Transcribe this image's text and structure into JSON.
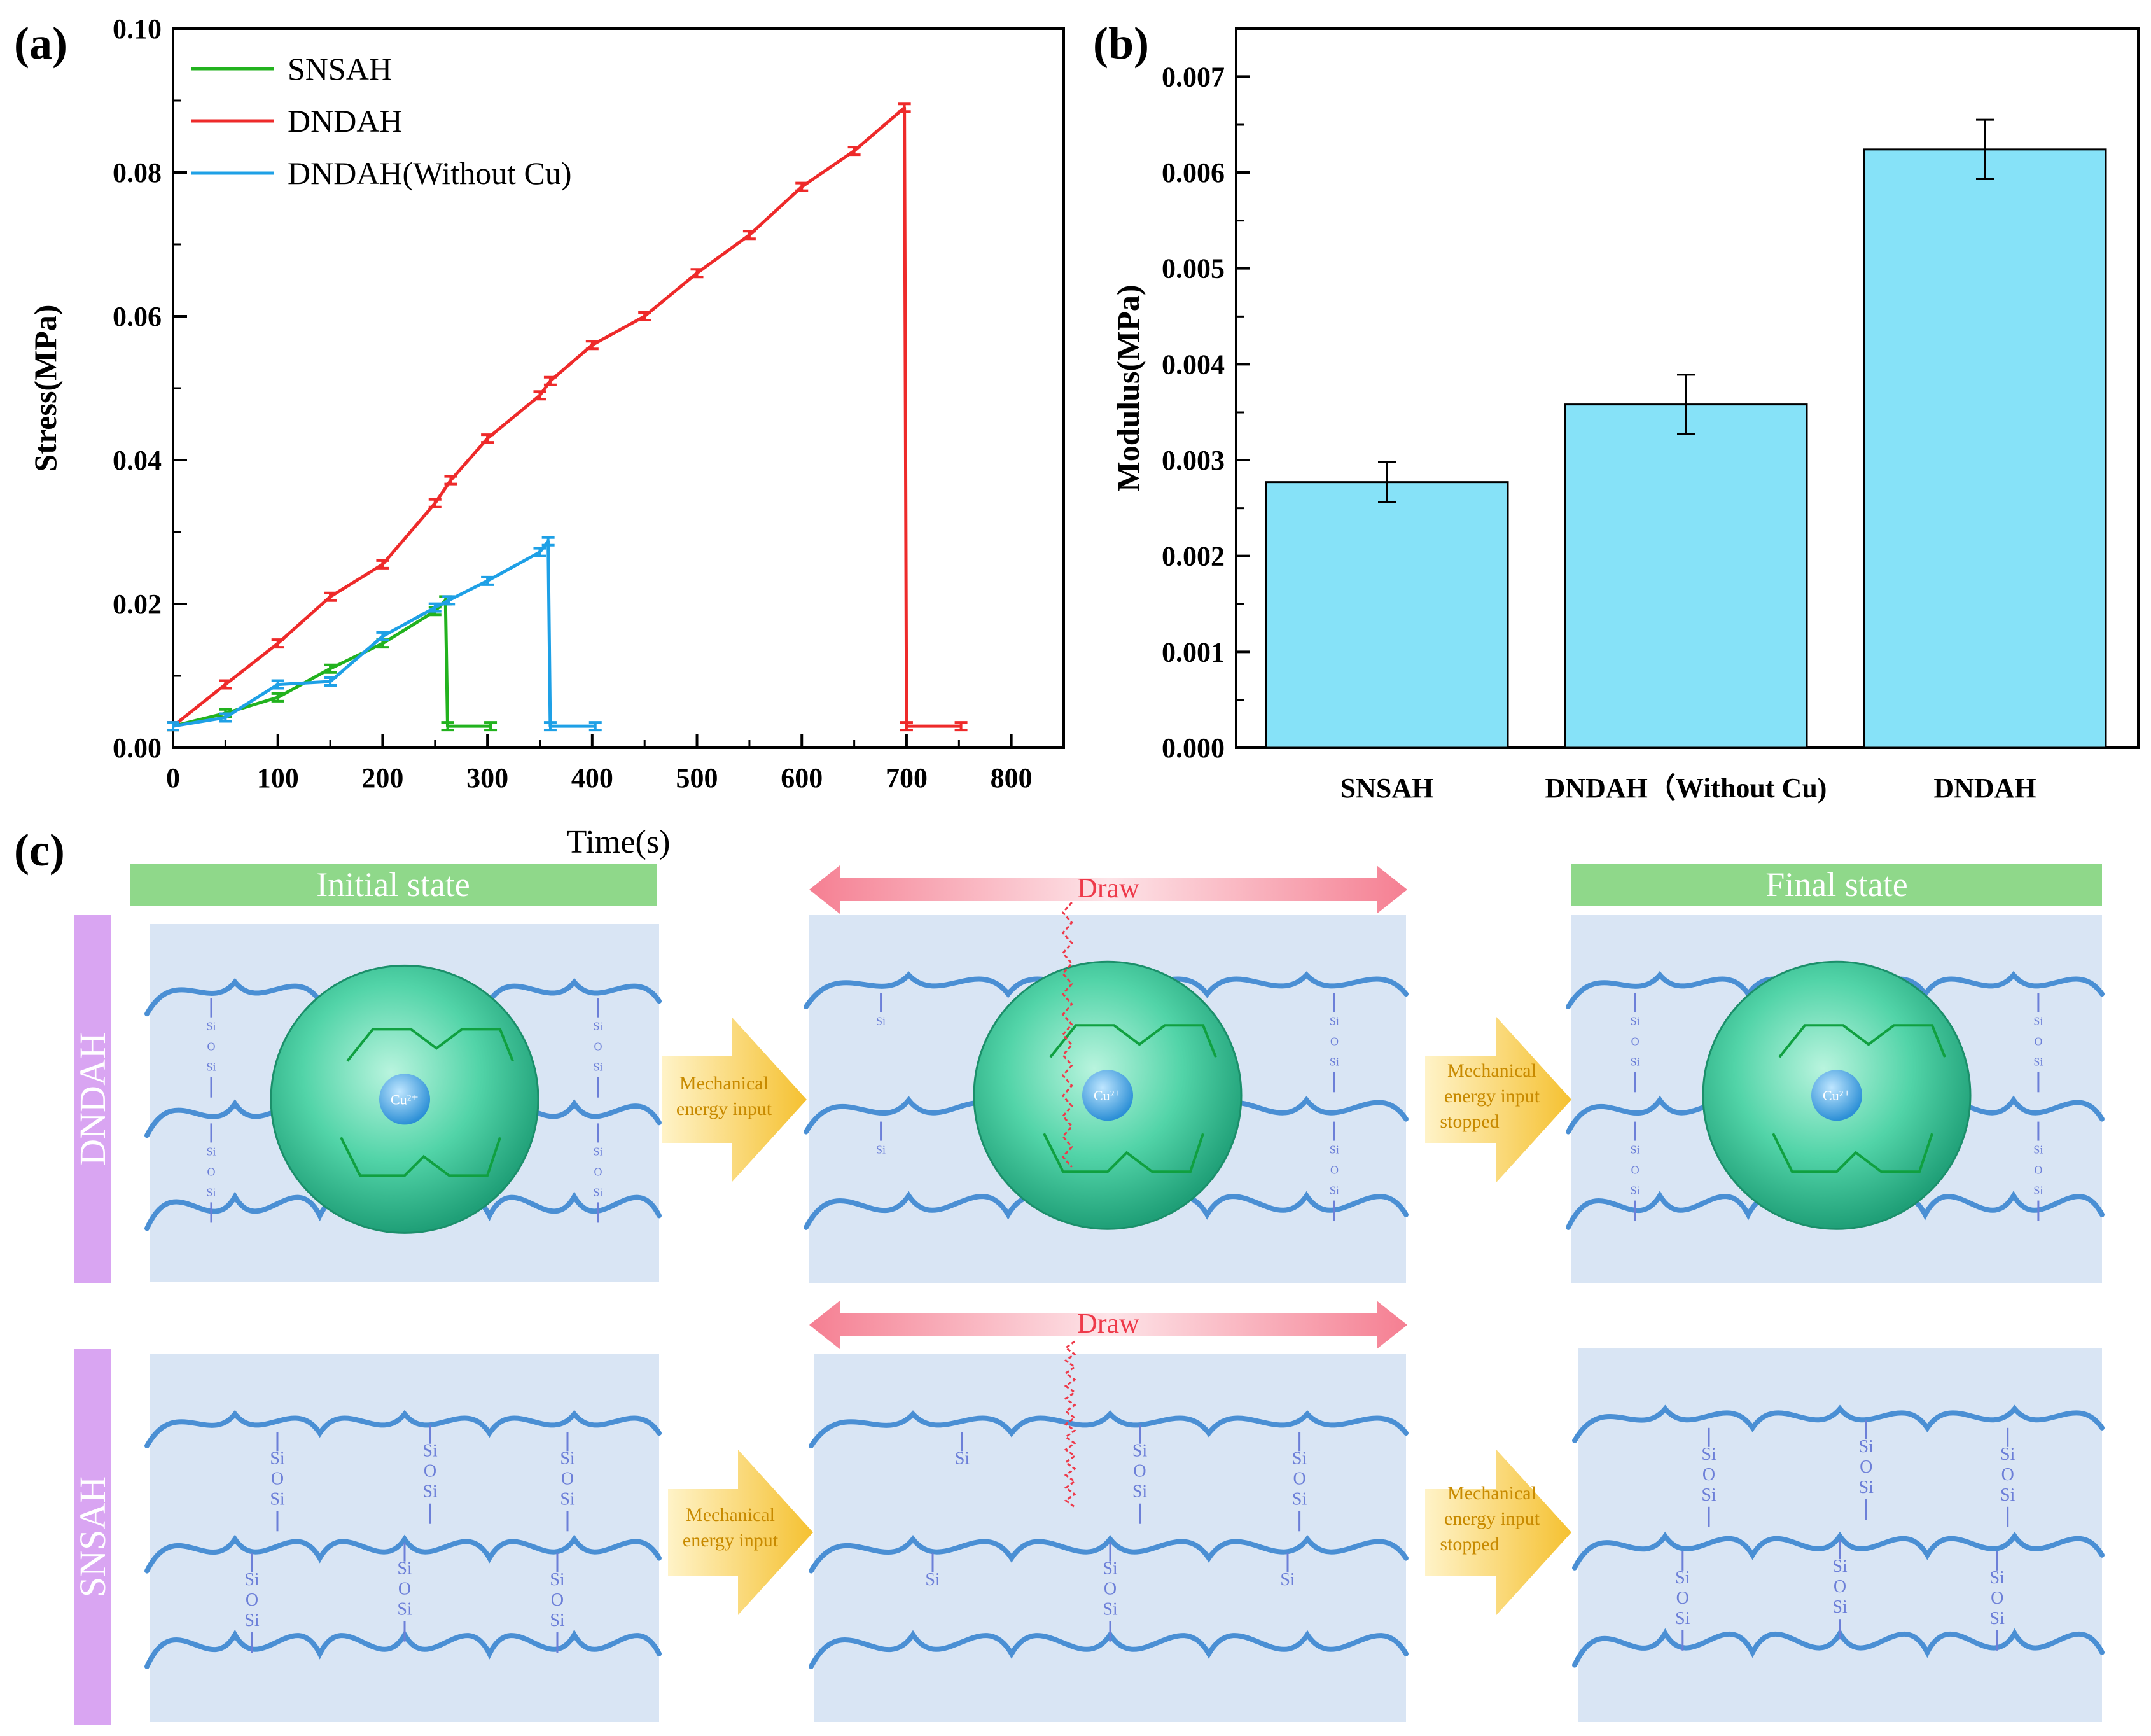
{
  "panels": {
    "a_label": "(a)",
    "b_label": "(b)",
    "c_label": "(c)"
  },
  "colors": {
    "snsah": "#22b21e",
    "dndah": "#ee2a2a",
    "dndah_wo": "#1ea0e6",
    "bar_fill": "#86e2f8",
    "state_bar": "#8fd88a",
    "side_bar": "#d9a5f2",
    "panel_bg": "#d9e5f4",
    "chain": "#4a8fd4",
    "arrow_pink": "#f58b9a",
    "arrow_yellow": "#f7c84a",
    "sphere": "#47d1a8",
    "cu": "#3aa0e0"
  },
  "chart_data": [
    {
      "type": "line",
      "title": "",
      "xlabel": "Time(s)",
      "ylabel": "Stress(MPa)",
      "xlim": [
        0,
        850
      ],
      "ylim": [
        0,
        0.1
      ],
      "xticks": [
        "0",
        "100",
        "200",
        "300",
        "400",
        "500",
        "600",
        "700",
        "800"
      ],
      "yticks": [
        "0.00",
        "0.02",
        "0.04",
        "0.06",
        "0.08",
        "0.10"
      ],
      "legend_position": "top-left",
      "series": [
        {
          "name": "SNSAH",
          "points": [
            [
              0,
              0.003
            ],
            [
              50,
              0.0048
            ],
            [
              100,
              0.007
            ],
            [
              150,
              0.011
            ],
            [
              200,
              0.0145
            ],
            [
              250,
              0.019
            ],
            [
              260,
              0.0205
            ],
            [
              262,
              0.003
            ],
            [
              303,
              0.003
            ]
          ]
        },
        {
          "name": "DNDAH",
          "points": [
            [
              0,
              0.003
            ],
            [
              50,
              0.0088
            ],
            [
              100,
              0.0145
            ],
            [
              150,
              0.021
            ],
            [
              200,
              0.0255
            ],
            [
              250,
              0.034
            ],
            [
              265,
              0.0372
            ],
            [
              300,
              0.043
            ],
            [
              350,
              0.049
            ],
            [
              360,
              0.051
            ],
            [
              400,
              0.056
            ],
            [
              450,
              0.06
            ],
            [
              500,
              0.066
            ],
            [
              550,
              0.0713
            ],
            [
              600,
              0.078
            ],
            [
              650,
              0.083
            ],
            [
              698,
              0.089
            ],
            [
              700,
              0.003
            ],
            [
              752,
              0.003
            ]
          ]
        },
        {
          "name": "DNDAH(Without Cu)",
          "points": [
            [
              0,
              0.003
            ],
            [
              50,
              0.0042
            ],
            [
              100,
              0.0088
            ],
            [
              150,
              0.0092
            ],
            [
              200,
              0.0155
            ],
            [
              250,
              0.0195
            ],
            [
              263,
              0.0205
            ],
            [
              300,
              0.0232
            ],
            [
              350,
              0.0272
            ],
            [
              358,
              0.0287
            ],
            [
              360,
              0.003
            ],
            [
              403,
              0.003
            ]
          ]
        }
      ]
    },
    {
      "type": "bar",
      "title": "",
      "xlabel": "",
      "ylabel": "Modulus(MPa)",
      "ylim": [
        0,
        0.0075
      ],
      "yticks": [
        "0.000",
        "0.001",
        "0.002",
        "0.003",
        "0.004",
        "0.005",
        "0.006",
        "0.007"
      ],
      "categories": [
        "SNSAH",
        "DNDAH（Without Cu)",
        "DNDAH"
      ],
      "values": [
        0.00277,
        0.00358,
        0.00624
      ],
      "errors": [
        0.00021,
        0.00031,
        0.00031
      ]
    }
  ],
  "schematic": {
    "initial_state": "Initial state",
    "final_state": "Final state",
    "draw": "Draw",
    "row_dndah": "DNDAH",
    "row_snsah": "SNSAH",
    "mech_input_1": "Mechanical",
    "mech_input_2": "energy input",
    "mech_stop_1": "Mechanical",
    "mech_stop_2": "energy input",
    "mech_stop_3": "stopped",
    "cu_label": "Cu²⁺",
    "si": "Si",
    "o": "O"
  }
}
